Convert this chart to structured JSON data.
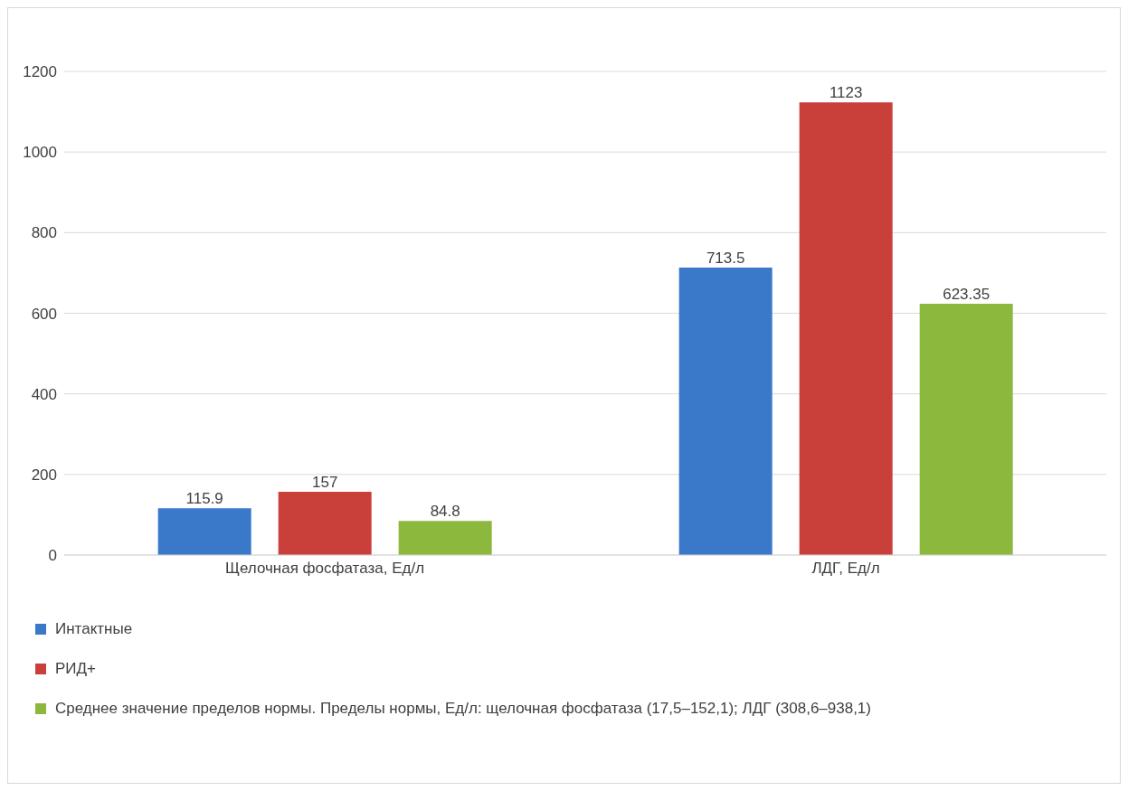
{
  "chart_data": {
    "type": "bar",
    "categories": [
      "Щелочная фосфатаза, Ед/л",
      "ЛДГ, Ед/л"
    ],
    "series": [
      {
        "name": "Интактные",
        "color": "#3a78c9",
        "values": [
          115.9,
          713.5
        ]
      },
      {
        "name": "РИД+",
        "color": "#c9403b",
        "values": [
          157,
          1123
        ]
      },
      {
        "name": "Среднее значение пределов нормы. Пределы нормы, Ед/л: щелочная фосфатаза (17,5–152,1); ЛДГ (308,6–938,1)",
        "color": "#8db83e",
        "values": [
          84.8,
          623.35
        ]
      }
    ],
    "ylim": [
      0,
      1200
    ],
    "yticks": [
      0,
      200,
      400,
      600,
      800,
      1000,
      1200
    ],
    "grid": "y",
    "legend": "bottom",
    "data_labels": true
  }
}
